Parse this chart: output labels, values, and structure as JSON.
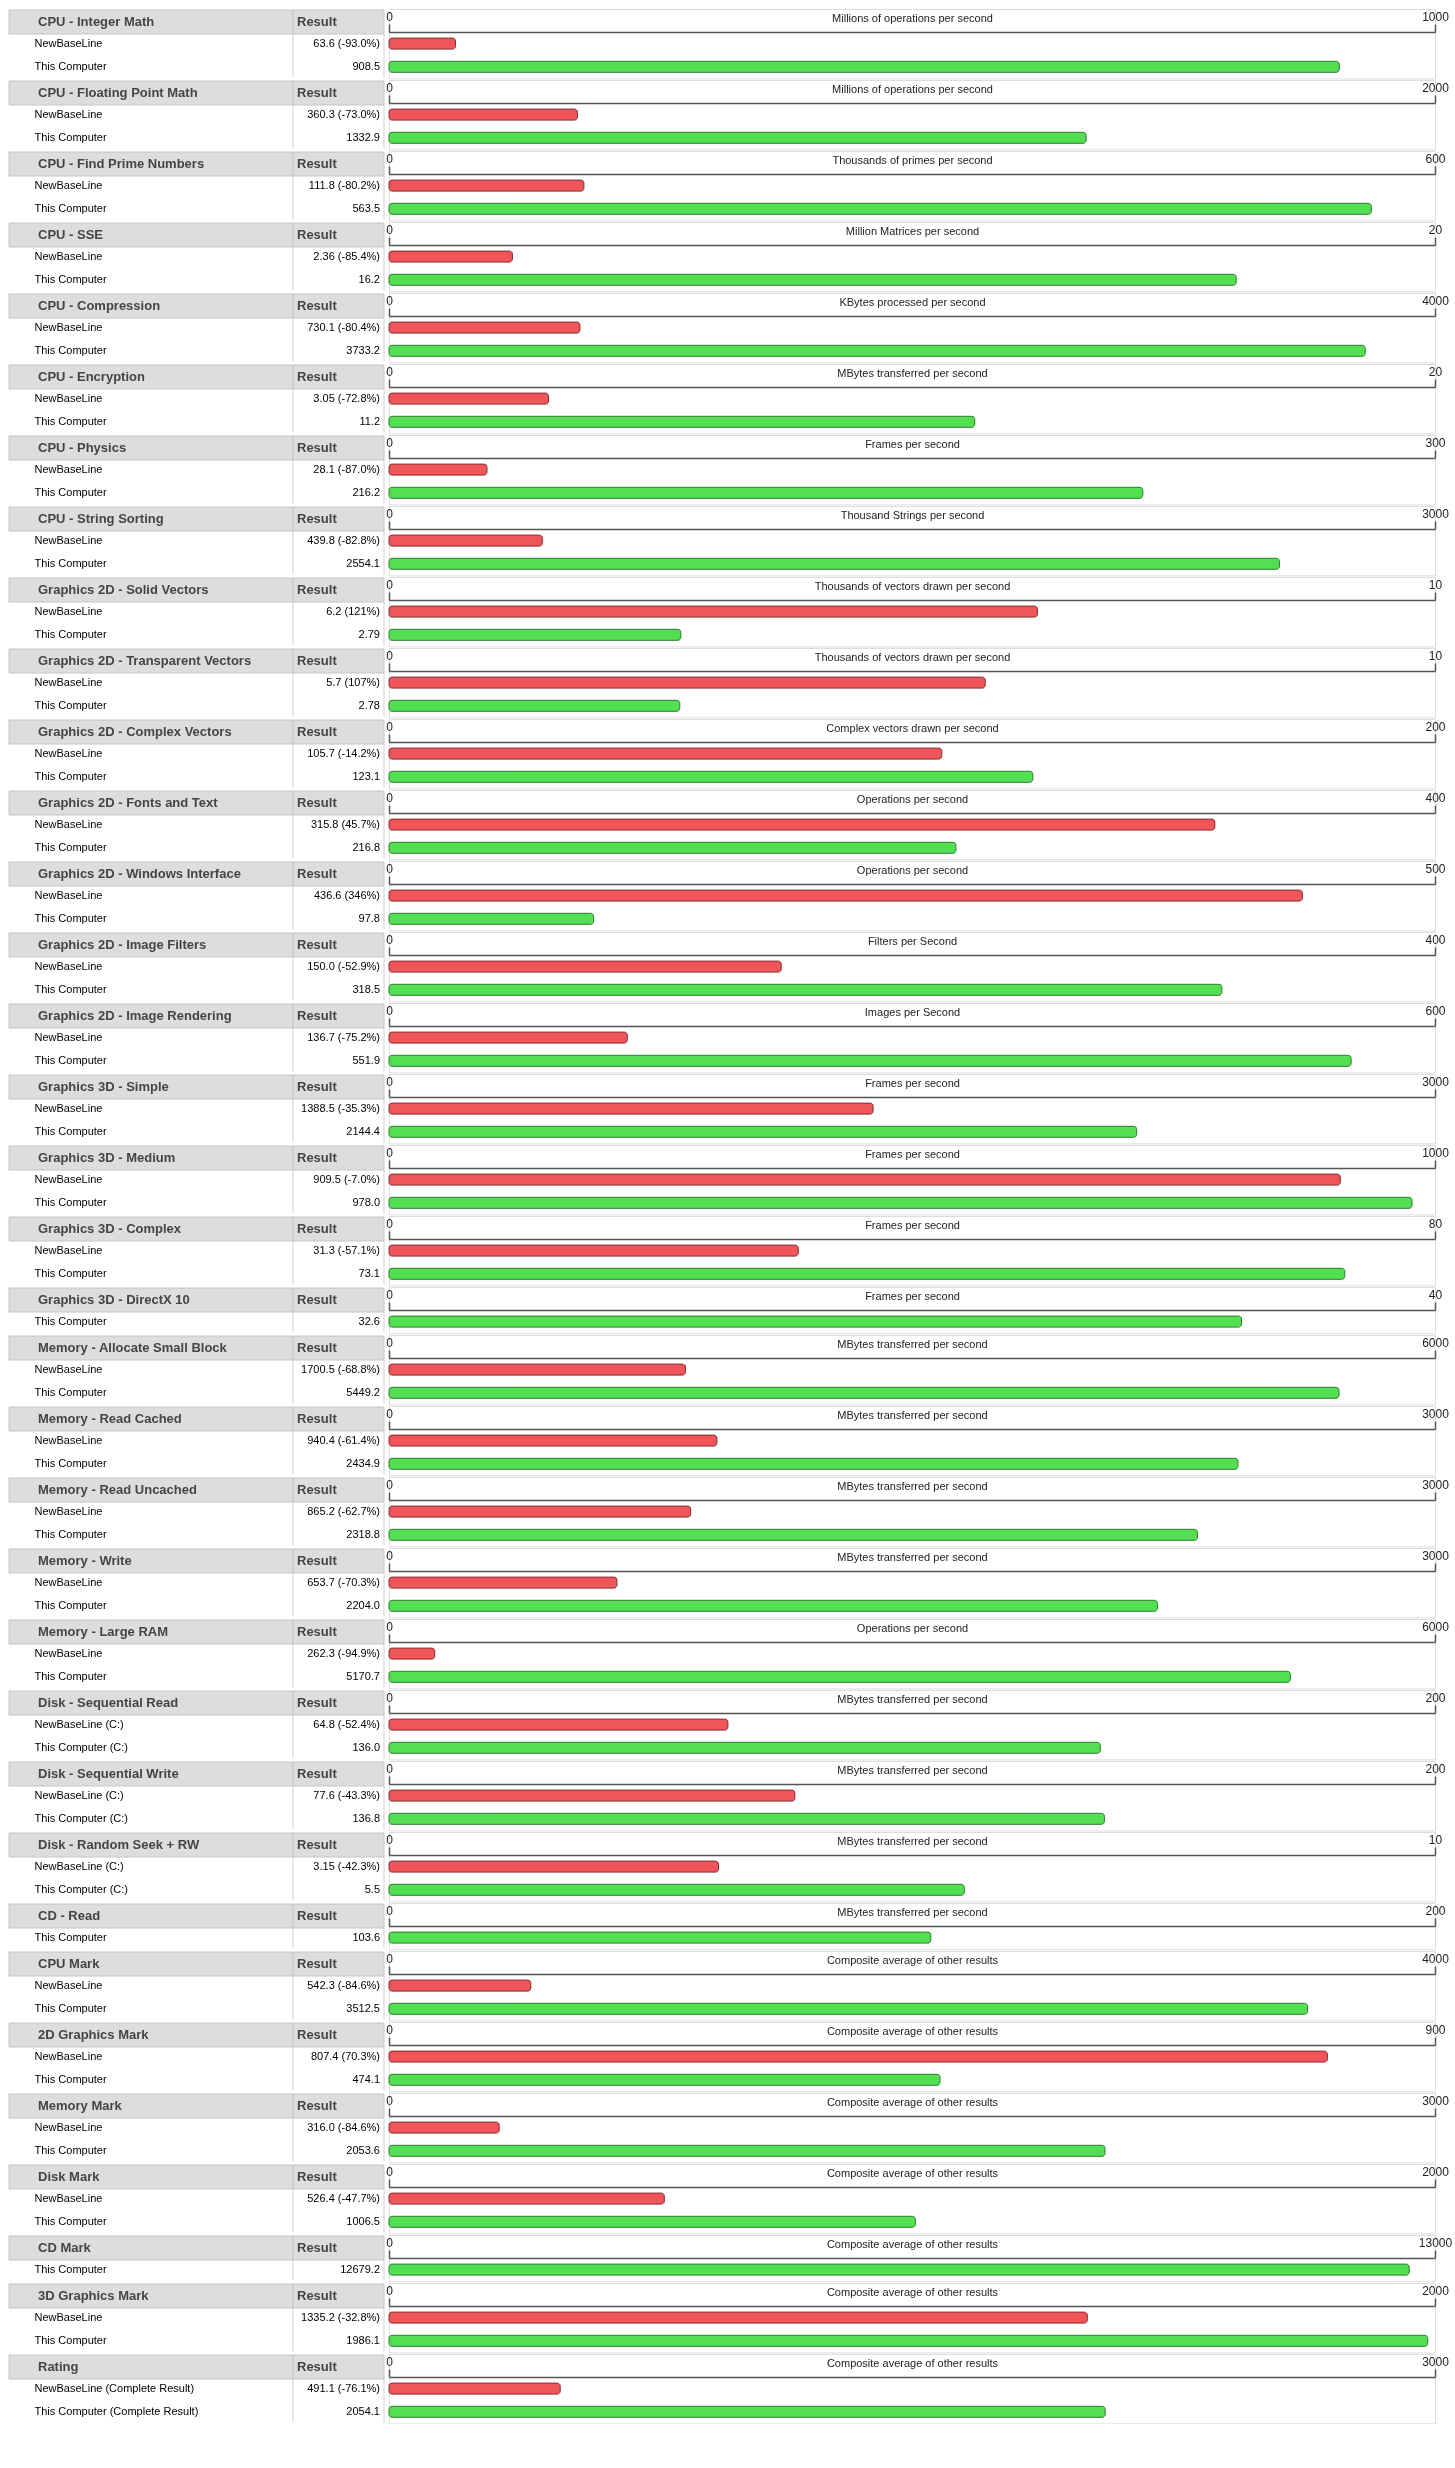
{
  "chart_data": [
    {
      "type": "bar",
      "orientation": "horizontal",
      "title": "CPU - Integer Math",
      "annotations": [
        "Result"
      ],
      "x2label": "Millions of operations per second",
      "x2lim": [
        0,
        1000
      ],
      "x2ticks": [
        0,
        1000
      ],
      "categories": [
        "NewBaseLine",
        "This Computer"
      ],
      "values": [
        63.6,
        908.5
      ],
      "colors": [
        "#f0555a",
        "#52e052"
      ],
      "value_labels": [
        "63.6 (-93.0%)",
        "908.5"
      ]
    },
    {
      "type": "bar",
      "orientation": "horizontal",
      "title": "CPU - Floating Point Math",
      "annotations": [
        "Result"
      ],
      "x2label": "Millions of operations per second",
      "x2lim": [
        0,
        2000
      ],
      "x2ticks": [
        0,
        2000
      ],
      "categories": [
        "NewBaseLine",
        "This Computer"
      ],
      "values": [
        360.3,
        1332.9
      ],
      "colors": [
        "#f0555a",
        "#52e052"
      ],
      "value_labels": [
        "360.3 (-73.0%)",
        "1332.9"
      ]
    },
    {
      "type": "bar",
      "orientation": "horizontal",
      "title": "CPU - Find Prime Numbers",
      "annotations": [
        "Result"
      ],
      "x2label": "Thousands of primes per second",
      "x2lim": [
        0,
        600
      ],
      "x2ticks": [
        0,
        600
      ],
      "categories": [
        "NewBaseLine",
        "This Computer"
      ],
      "values": [
        111.8,
        563.5
      ],
      "colors": [
        "#f0555a",
        "#52e052"
      ],
      "value_labels": [
        "111.8 (-80.2%)",
        "563.5"
      ]
    },
    {
      "type": "bar",
      "orientation": "horizontal",
      "title": "CPU - SSE",
      "annotations": [
        "Result"
      ],
      "x2label": "Million Matrices per second",
      "x2lim": [
        0,
        20
      ],
      "x2ticks": [
        0,
        20
      ],
      "categories": [
        "NewBaseLine",
        "This Computer"
      ],
      "values": [
        2.36,
        16.2
      ],
      "colors": [
        "#f0555a",
        "#52e052"
      ],
      "value_labels": [
        "2.36 (-85.4%)",
        "16.2"
      ]
    },
    {
      "type": "bar",
      "orientation": "horizontal",
      "title": "CPU - Compression",
      "annotations": [
        "Result"
      ],
      "x2label": "KBytes processed per second",
      "x2lim": [
        0,
        4000
      ],
      "x2ticks": [
        0,
        4000
      ],
      "categories": [
        "NewBaseLine",
        "This Computer"
      ],
      "values": [
        730.1,
        3733.2
      ],
      "colors": [
        "#f0555a",
        "#52e052"
      ],
      "value_labels": [
        "730.1 (-80.4%)",
        "3733.2"
      ]
    },
    {
      "type": "bar",
      "orientation": "horizontal",
      "title": "CPU - Encryption",
      "annotations": [
        "Result"
      ],
      "x2label": "MBytes transferred per second",
      "x2lim": [
        0,
        20
      ],
      "x2ticks": [
        0,
        20
      ],
      "categories": [
        "NewBaseLine",
        "This Computer"
      ],
      "values": [
        3.05,
        11.2
      ],
      "colors": [
        "#f0555a",
        "#52e052"
      ],
      "value_labels": [
        "3.05 (-72.8%)",
        "11.2"
      ]
    },
    {
      "type": "bar",
      "orientation": "horizontal",
      "title": "CPU - Physics",
      "annotations": [
        "Result"
      ],
      "x2label": "Frames per second",
      "x2lim": [
        0,
        300
      ],
      "x2ticks": [
        0,
        300
      ],
      "categories": [
        "NewBaseLine",
        "This Computer"
      ],
      "values": [
        28.1,
        216.2
      ],
      "colors": [
        "#f0555a",
        "#52e052"
      ],
      "value_labels": [
        "28.1 (-87.0%)",
        "216.2"
      ]
    },
    {
      "type": "bar",
      "orientation": "horizontal",
      "title": "CPU - String Sorting",
      "annotations": [
        "Result"
      ],
      "x2label": "Thousand Strings per second",
      "x2lim": [
        0,
        3000
      ],
      "x2ticks": [
        0,
        3000
      ],
      "categories": [
        "NewBaseLine",
        "This Computer"
      ],
      "values": [
        439.8,
        2554.1
      ],
      "colors": [
        "#f0555a",
        "#52e052"
      ],
      "value_labels": [
        "439.8 (-82.8%)",
        "2554.1"
      ]
    },
    {
      "type": "bar",
      "orientation": "horizontal",
      "title": "Graphics 2D - Solid Vectors",
      "annotations": [
        "Result"
      ],
      "x2label": "Thousands of vectors drawn per second",
      "x2lim": [
        0,
        10
      ],
      "x2ticks": [
        0,
        10
      ],
      "categories": [
        "NewBaseLine",
        "This Computer"
      ],
      "values": [
        6.2,
        2.79
      ],
      "colors": [
        "#f0555a",
        "#52e052"
      ],
      "value_labels": [
        "6.2 (121%)",
        "2.79"
      ]
    },
    {
      "type": "bar",
      "orientation": "horizontal",
      "title": "Graphics 2D - Transparent Vectors",
      "annotations": [
        "Result"
      ],
      "x2label": "Thousands of vectors drawn per second",
      "x2lim": [
        0,
        10
      ],
      "x2ticks": [
        0,
        10
      ],
      "categories": [
        "NewBaseLine",
        "This Computer"
      ],
      "values": [
        5.7,
        2.78
      ],
      "colors": [
        "#f0555a",
        "#52e052"
      ],
      "value_labels": [
        "5.7 (107%)",
        "2.78"
      ]
    },
    {
      "type": "bar",
      "orientation": "horizontal",
      "title": "Graphics 2D - Complex Vectors",
      "annotations": [
        "Result"
      ],
      "x2label": "Complex vectors drawn per second",
      "x2lim": [
        0,
        200
      ],
      "x2ticks": [
        0,
        200
      ],
      "categories": [
        "NewBaseLine",
        "This Computer"
      ],
      "values": [
        105.7,
        123.1
      ],
      "colors": [
        "#f0555a",
        "#52e052"
      ],
      "value_labels": [
        "105.7 (-14.2%)",
        "123.1"
      ]
    },
    {
      "type": "bar",
      "orientation": "horizontal",
      "title": "Graphics 2D - Fonts and Text",
      "annotations": [
        "Result"
      ],
      "x2label": "Operations per second",
      "x2lim": [
        0,
        400
      ],
      "x2ticks": [
        0,
        400
      ],
      "categories": [
        "NewBaseLine",
        "This Computer"
      ],
      "values": [
        315.8,
        216.8
      ],
      "colors": [
        "#f0555a",
        "#52e052"
      ],
      "value_labels": [
        "315.8 (45.7%)",
        "216.8"
      ]
    },
    {
      "type": "bar",
      "orientation": "horizontal",
      "title": "Graphics 2D - Windows Interface",
      "annotations": [
        "Result"
      ],
      "x2label": "Operations per second",
      "x2lim": [
        0,
        500
      ],
      "x2ticks": [
        0,
        500
      ],
      "categories": [
        "NewBaseLine",
        "This Computer"
      ],
      "values": [
        436.6,
        97.8
      ],
      "colors": [
        "#f0555a",
        "#52e052"
      ],
      "value_labels": [
        "436.6 (346%)",
        "97.8"
      ]
    },
    {
      "type": "bar",
      "orientation": "horizontal",
      "title": "Graphics 2D - Image Filters",
      "annotations": [
        "Result"
      ],
      "x2label": "Filters per Second",
      "x2lim": [
        0,
        400
      ],
      "x2ticks": [
        0,
        400
      ],
      "categories": [
        "NewBaseLine",
        "This Computer"
      ],
      "values": [
        150.0,
        318.5
      ],
      "colors": [
        "#f0555a",
        "#52e052"
      ],
      "value_labels": [
        "150.0 (-52.9%)",
        "318.5"
      ]
    },
    {
      "type": "bar",
      "orientation": "horizontal",
      "title": "Graphics 2D - Image Rendering",
      "annotations": [
        "Result"
      ],
      "x2label": "Images per Second",
      "x2lim": [
        0,
        600
      ],
      "x2ticks": [
        0,
        600
      ],
      "categories": [
        "NewBaseLine",
        "This Computer"
      ],
      "values": [
        136.7,
        551.9
      ],
      "colors": [
        "#f0555a",
        "#52e052"
      ],
      "value_labels": [
        "136.7 (-75.2%)",
        "551.9"
      ]
    },
    {
      "type": "bar",
      "orientation": "horizontal",
      "title": "Graphics 3D - Simple",
      "annotations": [
        "Result"
      ],
      "x2label": "Frames per second",
      "x2lim": [
        0,
        3000
      ],
      "x2ticks": [
        0,
        3000
      ],
      "categories": [
        "NewBaseLine",
        "This Computer"
      ],
      "values": [
        1388.5,
        2144.4
      ],
      "colors": [
        "#f0555a",
        "#52e052"
      ],
      "value_labels": [
        "1388.5 (-35.3%)",
        "2144.4"
      ]
    },
    {
      "type": "bar",
      "orientation": "horizontal",
      "title": "Graphics 3D - Medium",
      "annotations": [
        "Result"
      ],
      "x2label": "Frames per second",
      "x2lim": [
        0,
        1000
      ],
      "x2ticks": [
        0,
        1000
      ],
      "categories": [
        "NewBaseLine",
        "This Computer"
      ],
      "values": [
        909.5,
        978.0
      ],
      "colors": [
        "#f0555a",
        "#52e052"
      ],
      "value_labels": [
        "909.5 (-7.0%)",
        "978.0"
      ]
    },
    {
      "type": "bar",
      "orientation": "horizontal",
      "title": "Graphics 3D - Complex",
      "annotations": [
        "Result"
      ],
      "x2label": "Frames per second",
      "x2lim": [
        0,
        80
      ],
      "x2ticks": [
        0,
        80
      ],
      "categories": [
        "NewBaseLine",
        "This Computer"
      ],
      "values": [
        31.3,
        73.1
      ],
      "colors": [
        "#f0555a",
        "#52e052"
      ],
      "value_labels": [
        "31.3 (-57.1%)",
        "73.1"
      ]
    },
    {
      "type": "bar",
      "orientation": "horizontal",
      "title": "Graphics 3D - DirectX 10",
      "annotations": [
        "Result"
      ],
      "x2label": "Frames per second",
      "x2lim": [
        0,
        40
      ],
      "x2ticks": [
        0,
        40
      ],
      "categories": [
        "This Computer"
      ],
      "values": [
        32.6
      ],
      "colors": [
        "#52e052"
      ],
      "value_labels": [
        "32.6"
      ]
    },
    {
      "type": "bar",
      "orientation": "horizontal",
      "title": "Memory - Allocate Small Block",
      "annotations": [
        "Result"
      ],
      "x2label": "MBytes transferred per second",
      "x2lim": [
        0,
        6000
      ],
      "x2ticks": [
        0,
        6000
      ],
      "categories": [
        "NewBaseLine",
        "This Computer"
      ],
      "values": [
        1700.5,
        5449.2
      ],
      "colors": [
        "#f0555a",
        "#52e052"
      ],
      "value_labels": [
        "1700.5 (-68.8%)",
        "5449.2"
      ]
    },
    {
      "type": "bar",
      "orientation": "horizontal",
      "title": "Memory - Read Cached",
      "annotations": [
        "Result"
      ],
      "x2label": "MBytes transferred per second",
      "x2lim": [
        0,
        3000
      ],
      "x2ticks": [
        0,
        3000
      ],
      "categories": [
        "NewBaseLine",
        "This Computer"
      ],
      "values": [
        940.4,
        2434.9
      ],
      "colors": [
        "#f0555a",
        "#52e052"
      ],
      "value_labels": [
        "940.4 (-61.4%)",
        "2434.9"
      ]
    },
    {
      "type": "bar",
      "orientation": "horizontal",
      "title": "Memory - Read Uncached",
      "annotations": [
        "Result"
      ],
      "x2label": "MBytes transferred per second",
      "x2lim": [
        0,
        3000
      ],
      "x2ticks": [
        0,
        3000
      ],
      "categories": [
        "NewBaseLine",
        "This Computer"
      ],
      "values": [
        865.2,
        2318.8
      ],
      "colors": [
        "#f0555a",
        "#52e052"
      ],
      "value_labels": [
        "865.2 (-62.7%)",
        "2318.8"
      ]
    },
    {
      "type": "bar",
      "orientation": "horizontal",
      "title": "Memory - Write",
      "annotations": [
        "Result"
      ],
      "x2label": "MBytes transferred per second",
      "x2lim": [
        0,
        3000
      ],
      "x2ticks": [
        0,
        3000
      ],
      "categories": [
        "NewBaseLine",
        "This Computer"
      ],
      "values": [
        653.7,
        2204.0
      ],
      "colors": [
        "#f0555a",
        "#52e052"
      ],
      "value_labels": [
        "653.7 (-70.3%)",
        "2204.0"
      ]
    },
    {
      "type": "bar",
      "orientation": "horizontal",
      "title": "Memory - Large RAM",
      "annotations": [
        "Result"
      ],
      "x2label": "Operations per second",
      "x2lim": [
        0,
        6000
      ],
      "x2ticks": [
        0,
        6000
      ],
      "categories": [
        "NewBaseLine",
        "This Computer"
      ],
      "values": [
        262.3,
        5170.7
      ],
      "colors": [
        "#f0555a",
        "#52e052"
      ],
      "value_labels": [
        "262.3 (-94.9%)",
        "5170.7"
      ]
    },
    {
      "type": "bar",
      "orientation": "horizontal",
      "title": "Disk - Sequential Read",
      "annotations": [
        "Result"
      ],
      "x2label": "MBytes transferred per second",
      "x2lim": [
        0,
        200
      ],
      "x2ticks": [
        0,
        200
      ],
      "categories": [
        "NewBaseLine (C:)",
        "This Computer (C:)"
      ],
      "values": [
        64.8,
        136.0
      ],
      "colors": [
        "#f0555a",
        "#52e052"
      ],
      "value_labels": [
        "64.8 (-52.4%)",
        "136.0"
      ]
    },
    {
      "type": "bar",
      "orientation": "horizontal",
      "title": "Disk - Sequential Write",
      "annotations": [
        "Result"
      ],
      "x2label": "MBytes transferred per second",
      "x2lim": [
        0,
        200
      ],
      "x2ticks": [
        0,
        200
      ],
      "categories": [
        "NewBaseLine (C:)",
        "This Computer (C:)"
      ],
      "values": [
        77.6,
        136.8
      ],
      "colors": [
        "#f0555a",
        "#52e052"
      ],
      "value_labels": [
        "77.6 (-43.3%)",
        "136.8"
      ]
    },
    {
      "type": "bar",
      "orientation": "horizontal",
      "title": "Disk - Random Seek + RW",
      "annotations": [
        "Result"
      ],
      "x2label": "MBytes transferred per second",
      "x2lim": [
        0,
        10
      ],
      "x2ticks": [
        0,
        10
      ],
      "categories": [
        "NewBaseLine (C:)",
        "This Computer (C:)"
      ],
      "values": [
        3.15,
        5.5
      ],
      "colors": [
        "#f0555a",
        "#52e052"
      ],
      "value_labels": [
        "3.15 (-42.3%)",
        "5.5"
      ]
    },
    {
      "type": "bar",
      "orientation": "horizontal",
      "title": "CD - Read",
      "annotations": [
        "Result"
      ],
      "x2label": "MBytes transferred per second",
      "x2lim": [
        0,
        200
      ],
      "x2ticks": [
        0,
        200
      ],
      "categories": [
        "This Computer"
      ],
      "values": [
        103.6
      ],
      "colors": [
        "#52e052"
      ],
      "value_labels": [
        "103.6"
      ]
    },
    {
      "type": "bar",
      "orientation": "horizontal",
      "title": "CPU Mark",
      "annotations": [
        "Result"
      ],
      "x2label": "Composite average of other results",
      "x2lim": [
        0,
        4000
      ],
      "x2ticks": [
        0,
        4000
      ],
      "categories": [
        "NewBaseLine",
        "This Computer"
      ],
      "values": [
        542.3,
        3512.5
      ],
      "colors": [
        "#f0555a",
        "#52e052"
      ],
      "value_labels": [
        "542.3 (-84.6%)",
        "3512.5"
      ]
    },
    {
      "type": "bar",
      "orientation": "horizontal",
      "title": "2D Graphics Mark",
      "annotations": [
        "Result"
      ],
      "x2label": "Composite average of other results",
      "x2lim": [
        0,
        900
      ],
      "x2ticks": [
        0,
        900
      ],
      "categories": [
        "NewBaseLine",
        "This Computer"
      ],
      "values": [
        807.4,
        474.1
      ],
      "colors": [
        "#f0555a",
        "#52e052"
      ],
      "value_labels": [
        "807.4 (70.3%)",
        "474.1"
      ]
    },
    {
      "type": "bar",
      "orientation": "horizontal",
      "title": "Memory Mark",
      "annotations": [
        "Result"
      ],
      "x2label": "Composite average of other results",
      "x2lim": [
        0,
        3000
      ],
      "x2ticks": [
        0,
        3000
      ],
      "categories": [
        "NewBaseLine",
        "This Computer"
      ],
      "values": [
        316.0,
        2053.6
      ],
      "colors": [
        "#f0555a",
        "#52e052"
      ],
      "value_labels": [
        "316.0 (-84.6%)",
        "2053.6"
      ]
    },
    {
      "type": "bar",
      "orientation": "horizontal",
      "title": "Disk Mark",
      "annotations": [
        "Result"
      ],
      "x2label": "Composite average of other results",
      "x2lim": [
        0,
        2000
      ],
      "x2ticks": [
        0,
        2000
      ],
      "categories": [
        "NewBaseLine",
        "This Computer"
      ],
      "values": [
        526.4,
        1006.5
      ],
      "colors": [
        "#f0555a",
        "#52e052"
      ],
      "value_labels": [
        "526.4 (-47.7%)",
        "1006.5"
      ]
    },
    {
      "type": "bar",
      "orientation": "horizontal",
      "title": "CD Mark",
      "annotations": [
        "Result"
      ],
      "x2label": "Composite average of other results",
      "x2lim": [
        0,
        13000
      ],
      "x2ticks": [
        0,
        13000
      ],
      "categories": [
        "This Computer"
      ],
      "values": [
        12679.2
      ],
      "colors": [
        "#52e052"
      ],
      "value_labels": [
        "12679.2"
      ]
    },
    {
      "type": "bar",
      "orientation": "horizontal",
      "title": "3D Graphics Mark",
      "annotations": [
        "Result"
      ],
      "x2label": "Composite average of other results",
      "x2lim": [
        0,
        2000
      ],
      "x2ticks": [
        0,
        2000
      ],
      "categories": [
        "NewBaseLine",
        "This Computer"
      ],
      "values": [
        1335.2,
        1986.1
      ],
      "colors": [
        "#f0555a",
        "#52e052"
      ],
      "value_labels": [
        "1335.2 (-32.8%)",
        "1986.1"
      ]
    },
    {
      "type": "bar",
      "orientation": "horizontal",
      "title": "Rating",
      "annotations": [
        "Result"
      ],
      "x2label": "Composite average of other results",
      "x2lim": [
        0,
        3000
      ],
      "x2ticks": [
        0,
        3000
      ],
      "categories": [
        "NewBaseLine (Complete Result)",
        "This Computer (Complete Result)"
      ],
      "values": [
        491.1,
        2054.1
      ],
      "colors": [
        "#f0555a",
        "#52e052"
      ],
      "value_labels": [
        "491.1 (-76.1%)",
        "2054.1"
      ]
    }
  ]
}
